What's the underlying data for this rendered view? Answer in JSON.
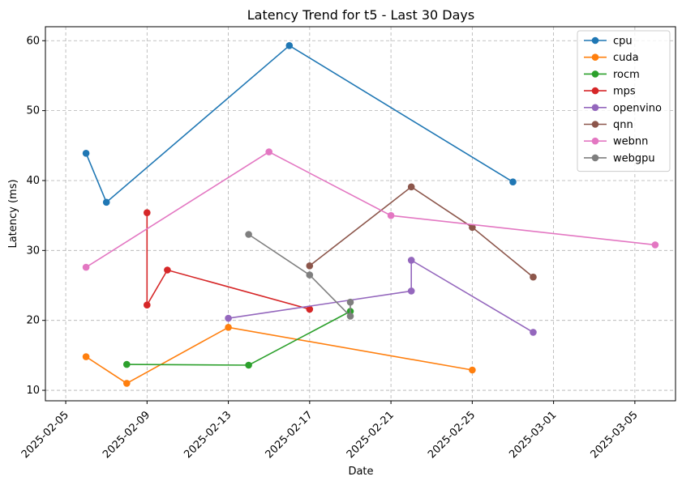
{
  "chart_data": {
    "type": "line",
    "title": "Latency Trend for t5 - Last 30 Days",
    "xlabel": "Date",
    "ylabel": "Latency (ms)",
    "x_type": "date",
    "xlim": [
      "2025-02-04",
      "2025-03-07"
    ],
    "ylim": [
      8.5,
      62
    ],
    "x_ticks": [
      "2025-02-05",
      "2025-02-09",
      "2025-02-13",
      "2025-02-17",
      "2025-02-21",
      "2025-02-25",
      "2025-03-01",
      "2025-03-05"
    ],
    "y_ticks": [
      10,
      20,
      30,
      40,
      50,
      60
    ],
    "grid": true,
    "legend_position": "top-right",
    "series": [
      {
        "name": "cpu",
        "color": "#1f77b4",
        "points": [
          [
            "2025-02-06",
            43.9
          ],
          [
            "2025-02-07",
            36.9
          ],
          [
            "2025-02-16",
            59.3
          ],
          [
            "2025-02-27",
            39.8
          ]
        ]
      },
      {
        "name": "cuda",
        "color": "#ff7f0e",
        "points": [
          [
            "2025-02-06",
            14.8
          ],
          [
            "2025-02-08",
            11.0
          ],
          [
            "2025-02-13",
            19.0
          ],
          [
            "2025-02-25",
            12.9
          ]
        ]
      },
      {
        "name": "rocm",
        "color": "#2ca02c",
        "points": [
          [
            "2025-02-08",
            13.7
          ],
          [
            "2025-02-14",
            13.6
          ],
          [
            "2025-02-19",
            21.3
          ]
        ]
      },
      {
        "name": "mps",
        "color": "#d62728",
        "points": [
          [
            "2025-02-09",
            35.4
          ],
          [
            "2025-02-09",
            22.2
          ],
          [
            "2025-02-10",
            27.2
          ],
          [
            "2025-02-17",
            21.6
          ]
        ]
      },
      {
        "name": "openvino",
        "color": "#9467bd",
        "points": [
          [
            "2025-02-13",
            20.3
          ],
          [
            "2025-02-22",
            24.2
          ],
          [
            "2025-02-22",
            28.6
          ],
          [
            "2025-02-28",
            18.3
          ]
        ]
      },
      {
        "name": "qnn",
        "color": "#8c564b",
        "points": [
          [
            "2025-02-17",
            27.8
          ],
          [
            "2025-02-22",
            39.1
          ],
          [
            "2025-02-25",
            33.3
          ],
          [
            "2025-02-28",
            26.2
          ]
        ]
      },
      {
        "name": "webnn",
        "color": "#e377c2",
        "points": [
          [
            "2025-02-06",
            27.6
          ],
          [
            "2025-02-15",
            44.1
          ],
          [
            "2025-02-21",
            35.0
          ],
          [
            "2025-03-06",
            30.8
          ]
        ]
      },
      {
        "name": "webgpu",
        "color": "#7f7f7f",
        "points": [
          [
            "2025-02-14",
            32.3
          ],
          [
            "2025-02-17",
            26.5
          ],
          [
            "2025-02-19",
            20.6
          ],
          [
            "2025-02-19",
            22.6
          ]
        ]
      }
    ]
  }
}
